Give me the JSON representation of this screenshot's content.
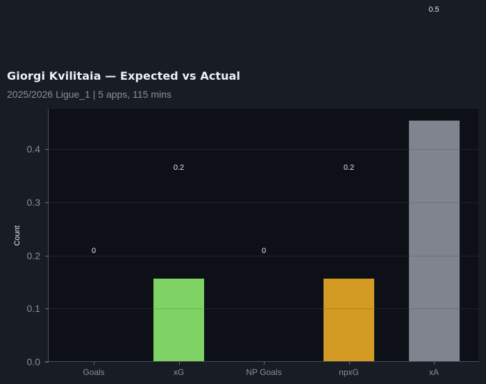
{
  "header": {
    "title": "Giorgi Kvilitaia — Expected vs Actual",
    "subtitle": "2025/2026 Ligue_1 | 5 apps, 115 mins"
  },
  "chart_data": {
    "type": "bar",
    "title": "Giorgi Kvilitaia — Expected vs Actual",
    "subtitle": "2025/2026 Ligue_1 | 5 apps, 115 mins",
    "xlabel": "",
    "ylabel": "Count",
    "categories": [
      "Goals",
      "xG",
      "NP Goals",
      "npxG",
      "xA"
    ],
    "values": [
      0,
      0.157,
      0,
      0.157,
      0.454
    ],
    "value_labels": [
      "0",
      "0.2",
      "0",
      "0.2",
      "0.5"
    ],
    "colors": [
      "#7ed364",
      "#7ed364",
      "#d39a24",
      "#d39a24",
      "#7f848e"
    ],
    "ylim": [
      0,
      0.476
    ],
    "yticks": [
      "0.0",
      "0.1",
      "0.2",
      "0.3",
      "0.4"
    ],
    "grid": true,
    "legend": null
  },
  "colors": {
    "background": "#181c24",
    "plot_background": "#0d1017",
    "xg": "#7ed364",
    "npxg": "#d39a24",
    "xa": "#7f848e"
  }
}
